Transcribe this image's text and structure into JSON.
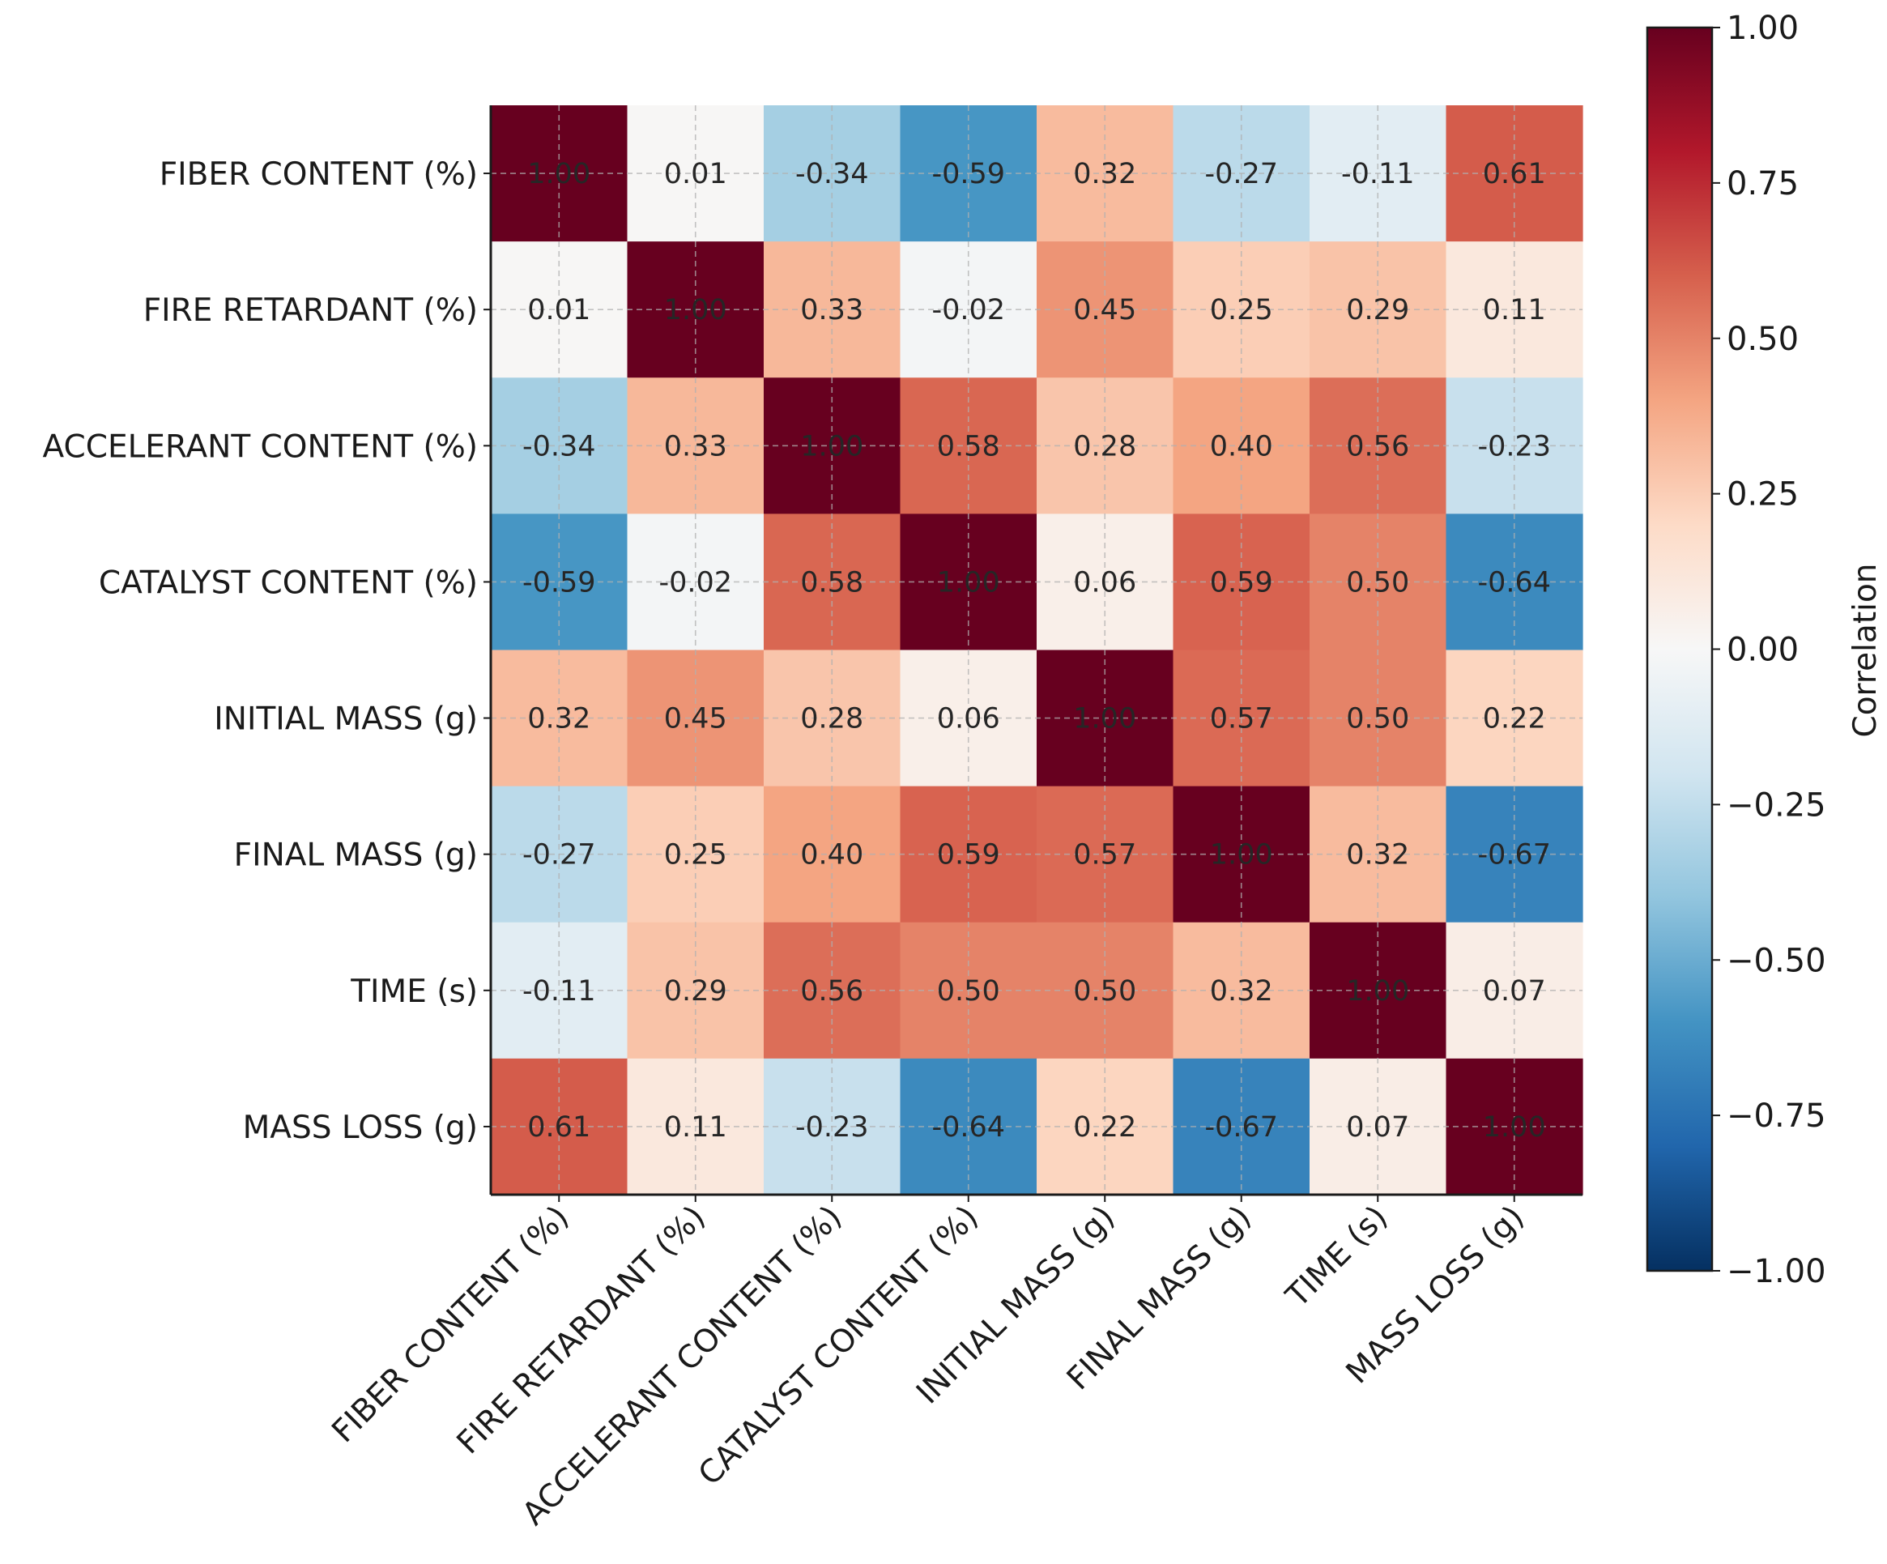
{
  "chart_data": {
    "type": "heatmap",
    "title": "",
    "labels": [
      "FIBER CONTENT (%)",
      "FIRE RETARDANT (%)",
      "ACCELERANT CONTENT (%)",
      "CATALYST CONTENT (%)",
      "INITIAL MASS (g)",
      "FINAL MASS (g)",
      "TIME (s)",
      "MASS LOSS (g)"
    ],
    "matrix": [
      [
        1.0,
        0.01,
        -0.34,
        -0.59,
        0.32,
        -0.27,
        -0.11,
        0.61
      ],
      [
        0.01,
        1.0,
        0.33,
        -0.02,
        0.45,
        0.25,
        0.29,
        0.11
      ],
      [
        -0.34,
        0.33,
        1.0,
        0.58,
        0.28,
        0.4,
        0.56,
        -0.23
      ],
      [
        -0.59,
        -0.02,
        0.58,
        1.0,
        0.06,
        0.59,
        0.5,
        -0.64
      ],
      [
        0.32,
        0.45,
        0.28,
        0.06,
        1.0,
        0.57,
        0.5,
        0.22
      ],
      [
        -0.27,
        0.25,
        0.4,
        0.59,
        0.57,
        1.0,
        0.32,
        -0.67
      ],
      [
        -0.11,
        0.29,
        0.56,
        0.5,
        0.5,
        0.32,
        1.0,
        0.07
      ],
      [
        0.61,
        0.11,
        -0.23,
        -0.64,
        0.22,
        -0.67,
        0.07,
        1.0
      ]
    ],
    "value_format": "2 decimals",
    "colormap": "RdBu_r",
    "vmin": -1.0,
    "vmax": 1.0,
    "grid": true,
    "colorbar": {
      "label": "Correlation",
      "ticks": [
        "1.00",
        "0.75",
        "0.50",
        "0.25",
        "0.00",
        "−0.25",
        "−0.50",
        "−0.75",
        "−1.00"
      ],
      "tick_values": [
        1.0,
        0.75,
        0.5,
        0.25,
        0.0,
        -0.25,
        -0.5,
        -0.75,
        -1.0
      ]
    }
  }
}
